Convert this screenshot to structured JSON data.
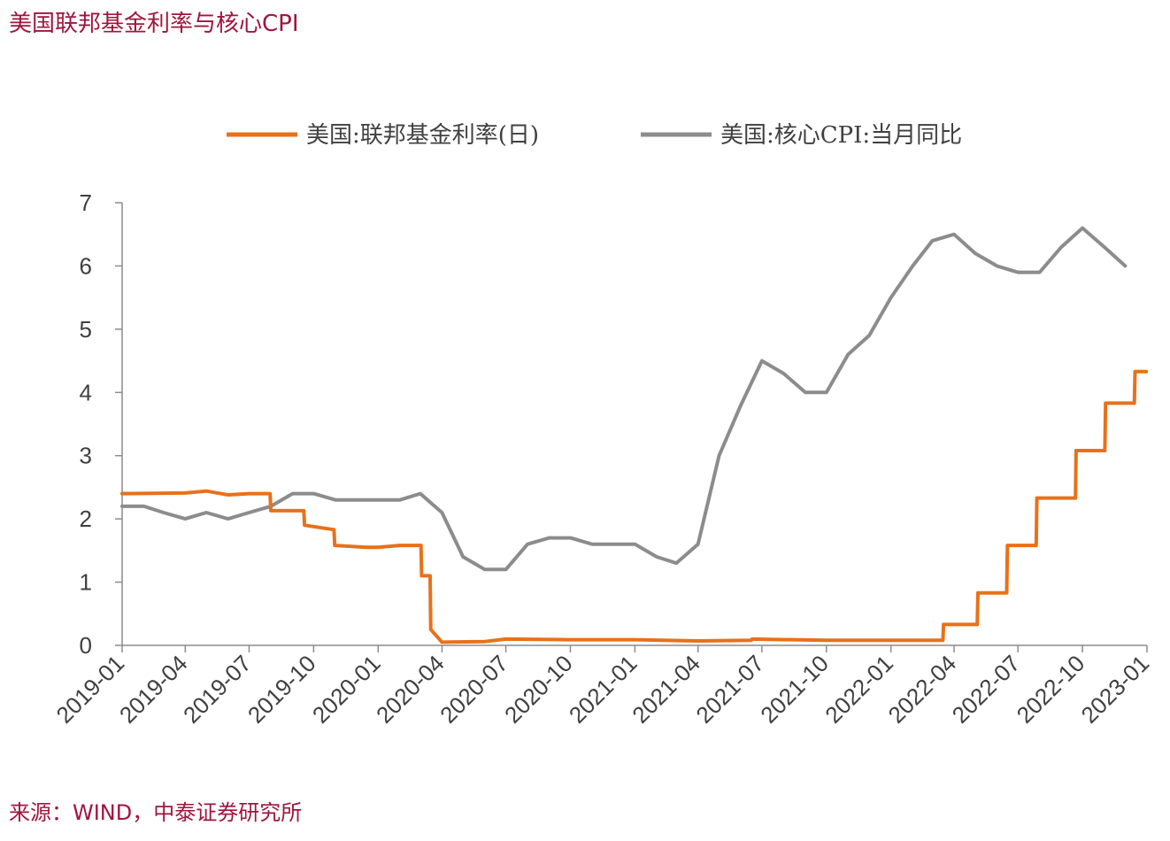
{
  "title": "美国联邦基金利率与核心CPI",
  "source": "来源：WIND，中泰证券研究所",
  "chart_data": {
    "type": "line",
    "x_axis": {
      "ticks": [
        "2019-01",
        "2019-04",
        "2019-07",
        "2019-10",
        "2020-01",
        "2020-04",
        "2020-07",
        "2020-10",
        "2021-01",
        "2021-04",
        "2021-07",
        "2021-10",
        "2022-01",
        "2022-04",
        "2022-07",
        "2022-10",
        "2023-01"
      ]
    },
    "y_axis": {
      "min": 0,
      "max": 7,
      "ticks": [
        "0",
        "1",
        "2",
        "3",
        "4",
        "5",
        "6",
        "7"
      ]
    },
    "legend_position": "top",
    "series": [
      {
        "name": "美国:联邦基金利率(日)",
        "color": "#e8711a",
        "points": [
          [
            "2019-01-01",
            2.4
          ],
          [
            "2019-04-01",
            2.41
          ],
          [
            "2019-05-01",
            2.44
          ],
          [
            "2019-06-01",
            2.38
          ],
          [
            "2019-07-01",
            2.4
          ],
          [
            "2019-07-31",
            2.4
          ],
          [
            "2019-08-01",
            2.13
          ],
          [
            "2019-09-17",
            2.13
          ],
          [
            "2019-09-18",
            1.9
          ],
          [
            "2019-10-30",
            1.83
          ],
          [
            "2019-10-31",
            1.58
          ],
          [
            "2019-12-15",
            1.55
          ],
          [
            "2020-01-01",
            1.55
          ],
          [
            "2020-02-01",
            1.58
          ],
          [
            "2020-03-02",
            1.58
          ],
          [
            "2020-03-03",
            1.1
          ],
          [
            "2020-03-15",
            1.1
          ],
          [
            "2020-03-16",
            0.25
          ],
          [
            "2020-04-01",
            0.05
          ],
          [
            "2020-06-01",
            0.06
          ],
          [
            "2020-07-01",
            0.1
          ],
          [
            "2020-10-01",
            0.09
          ],
          [
            "2021-01-01",
            0.09
          ],
          [
            "2021-04-01",
            0.07
          ],
          [
            "2021-06-16",
            0.08
          ],
          [
            "2021-06-17",
            0.1
          ],
          [
            "2021-10-01",
            0.08
          ],
          [
            "2022-01-01",
            0.08
          ],
          [
            "2022-03-16",
            0.08
          ],
          [
            "2022-03-17",
            0.33
          ],
          [
            "2022-05-04",
            0.33
          ],
          [
            "2022-05-05",
            0.83
          ],
          [
            "2022-06-15",
            0.83
          ],
          [
            "2022-06-16",
            1.58
          ],
          [
            "2022-07-27",
            1.58
          ],
          [
            "2022-07-28",
            2.33
          ],
          [
            "2022-09-21",
            2.33
          ],
          [
            "2022-09-22",
            3.08
          ],
          [
            "2022-11-02",
            3.08
          ],
          [
            "2022-11-03",
            3.83
          ],
          [
            "2022-12-14",
            3.83
          ],
          [
            "2022-12-15",
            4.33
          ],
          [
            "2022-12-31",
            4.33
          ]
        ]
      },
      {
        "name": "美国:核心CPI:当月同比",
        "color": "#8c8c8c",
        "points": [
          [
            "2019-01-01",
            2.2
          ],
          [
            "2019-02-01",
            2.2
          ],
          [
            "2019-03-01",
            2.1
          ],
          [
            "2019-04-01",
            2.0
          ],
          [
            "2019-05-01",
            2.1
          ],
          [
            "2019-06-01",
            2.0
          ],
          [
            "2019-07-01",
            2.1
          ],
          [
            "2019-08-01",
            2.2
          ],
          [
            "2019-09-01",
            2.4
          ],
          [
            "2019-10-01",
            2.4
          ],
          [
            "2019-11-01",
            2.3
          ],
          [
            "2019-12-01",
            2.3
          ],
          [
            "2020-01-01",
            2.3
          ],
          [
            "2020-02-01",
            2.3
          ],
          [
            "2020-03-01",
            2.4
          ],
          [
            "2020-04-01",
            2.1
          ],
          [
            "2020-05-01",
            1.4
          ],
          [
            "2020-06-01",
            1.2
          ],
          [
            "2020-07-01",
            1.2
          ],
          [
            "2020-08-01",
            1.6
          ],
          [
            "2020-09-01",
            1.7
          ],
          [
            "2020-10-01",
            1.7
          ],
          [
            "2020-11-01",
            1.6
          ],
          [
            "2020-12-01",
            1.6
          ],
          [
            "2021-01-01",
            1.6
          ],
          [
            "2021-02-01",
            1.4
          ],
          [
            "2021-03-01",
            1.3
          ],
          [
            "2021-04-01",
            1.6
          ],
          [
            "2021-05-01",
            3.0
          ],
          [
            "2021-06-01",
            3.8
          ],
          [
            "2021-07-01",
            4.5
          ],
          [
            "2021-08-01",
            4.3
          ],
          [
            "2021-09-01",
            4.0
          ],
          [
            "2021-10-01",
            4.0
          ],
          [
            "2021-11-01",
            4.6
          ],
          [
            "2021-12-01",
            4.9
          ],
          [
            "2022-01-01",
            5.5
          ],
          [
            "2022-02-01",
            6.0
          ],
          [
            "2022-03-01",
            6.4
          ],
          [
            "2022-04-01",
            6.5
          ],
          [
            "2022-05-01",
            6.2
          ],
          [
            "2022-06-01",
            6.0
          ],
          [
            "2022-07-01",
            5.9
          ],
          [
            "2022-08-01",
            5.9
          ],
          [
            "2022-09-01",
            6.3
          ],
          [
            "2022-10-01",
            6.6
          ],
          [
            "2022-11-01",
            6.3
          ],
          [
            "2022-12-01",
            6.0
          ]
        ]
      }
    ]
  }
}
